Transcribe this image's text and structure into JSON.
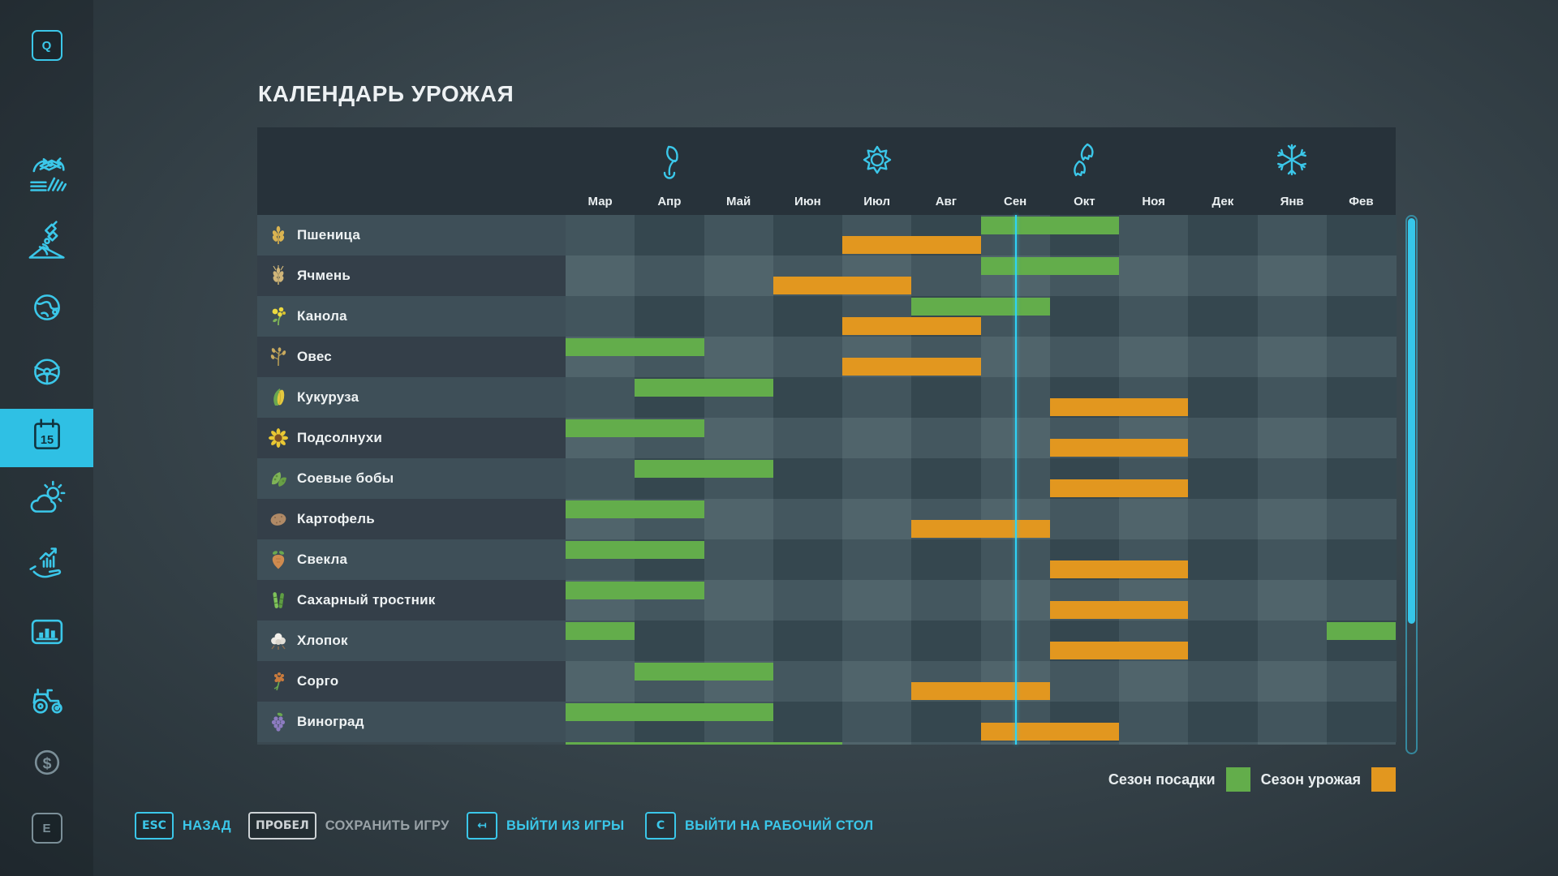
{
  "page": {
    "title": "КАЛЕНДАРЬ УРОЖАЯ"
  },
  "sidebar": {
    "items": [
      {
        "name": "hotkey-q",
        "type": "key",
        "label": "Q"
      },
      {
        "name": "farmlands",
        "type": "icon",
        "icon": "field-money-icon"
      },
      {
        "name": "placeables",
        "type": "icon",
        "icon": "satellite-icon"
      },
      {
        "name": "map",
        "type": "icon",
        "icon": "globe-icon"
      },
      {
        "name": "vehicles",
        "type": "icon",
        "icon": "steering-wheel-icon"
      },
      {
        "name": "calendar",
        "type": "icon",
        "icon": "calendar-icon",
        "label": "15",
        "active": true
      },
      {
        "name": "weather",
        "type": "icon",
        "icon": "weather-icon"
      },
      {
        "name": "market-trends",
        "type": "icon",
        "icon": "hand-chart-icon"
      },
      {
        "name": "statistics",
        "type": "icon",
        "icon": "bar-chart-icon"
      },
      {
        "name": "garage",
        "type": "icon",
        "icon": "tractor-icon"
      },
      {
        "name": "finances",
        "type": "icon",
        "icon": "dollar-icon",
        "dim": true
      },
      {
        "name": "hotkey-e",
        "type": "key",
        "label": "E",
        "dim": true
      }
    ]
  },
  "calendar": {
    "months": [
      "Мар",
      "Апр",
      "Май",
      "Июн",
      "Июл",
      "Авг",
      "Сен",
      "Окт",
      "Ноя",
      "Дек",
      "Янв",
      "Фев"
    ],
    "season_icons": [
      {
        "icon": "spring-icon",
        "month_index": 1
      },
      {
        "icon": "summer-icon",
        "month_index": 4
      },
      {
        "icon": "autumn-icon",
        "month_index": 7
      },
      {
        "icon": "winter-icon",
        "month_index": 10
      }
    ],
    "current_time": {
      "month_index": 6,
      "fraction": 0.5
    },
    "crops": [
      {
        "name": "Пшеница",
        "icon": "wheat-icon",
        "plant": [
          [
            6,
            7
          ]
        ],
        "harvest": [
          [
            4,
            5
          ]
        ]
      },
      {
        "name": "Ячмень",
        "icon": "barley-icon",
        "plant": [
          [
            6,
            7
          ]
        ],
        "harvest": [
          [
            3,
            4
          ]
        ]
      },
      {
        "name": "Канола",
        "icon": "canola-icon",
        "plant": [
          [
            5,
            6
          ]
        ],
        "harvest": [
          [
            4,
            5
          ]
        ]
      },
      {
        "name": "Овес",
        "icon": "oat-icon",
        "plant": [
          [
            0,
            1
          ]
        ],
        "harvest": [
          [
            4,
            5
          ]
        ]
      },
      {
        "name": "Кукуруза",
        "icon": "corn-icon",
        "plant": [
          [
            1,
            2
          ]
        ],
        "harvest": [
          [
            7,
            8
          ]
        ]
      },
      {
        "name": "Подсолнухи",
        "icon": "sunflower-icon",
        "plant": [
          [
            0,
            1
          ]
        ],
        "harvest": [
          [
            7,
            8
          ]
        ]
      },
      {
        "name": "Соевые бобы",
        "icon": "soybean-icon",
        "plant": [
          [
            1,
            2
          ]
        ],
        "harvest": [
          [
            7,
            8
          ]
        ]
      },
      {
        "name": "Картофель",
        "icon": "potato-icon",
        "plant": [
          [
            0,
            1
          ]
        ],
        "harvest": [
          [
            5,
            6
          ]
        ]
      },
      {
        "name": "Свекла",
        "icon": "beet-icon",
        "plant": [
          [
            0,
            1
          ]
        ],
        "harvest": [
          [
            7,
            8
          ]
        ]
      },
      {
        "name": "Сахарный тростник",
        "icon": "sugarcane-icon",
        "plant": [
          [
            0,
            1
          ]
        ],
        "harvest": [
          [
            7,
            8
          ]
        ]
      },
      {
        "name": "Хлопок",
        "icon": "cotton-icon",
        "plant": [
          [
            0,
            0
          ],
          [
            11,
            11
          ]
        ],
        "harvest": [
          [
            7,
            8
          ]
        ]
      },
      {
        "name": "Сорго",
        "icon": "sorghum-icon",
        "plant": [
          [
            1,
            2
          ]
        ],
        "harvest": [
          [
            5,
            6
          ]
        ]
      },
      {
        "name": "Виноград",
        "icon": "grape-icon",
        "plant": [
          [
            0,
            2
          ]
        ],
        "harvest": [
          [
            6,
            7
          ]
        ]
      }
    ],
    "partial_next_row": {
      "plant": [
        [
          0,
          3
        ]
      ]
    }
  },
  "legend": {
    "planting_label": "Сезон посадки",
    "planting_color": "#63ad4b",
    "harvest_label": "Сезон урожая",
    "harvest_color": "#e2971f"
  },
  "hotkeys": [
    {
      "key": "ESC",
      "label": "НАЗАД",
      "variant": "cyan"
    },
    {
      "key": "ПРОБЕЛ",
      "label": "СОХРАНИТЬ ИГРУ",
      "variant": "grey"
    },
    {
      "key": "↤",
      "label": "ВЫЙТИ ИЗ ИГРЫ",
      "variant": "cyan"
    },
    {
      "key": "C",
      "label": "ВЫЙТИ НА РАБОЧИЙ СТОЛ",
      "variant": "cyan"
    }
  ],
  "colors": {
    "accent": "#3bc7e9",
    "planting": "#63ad4b",
    "harvest": "#e2971f"
  }
}
